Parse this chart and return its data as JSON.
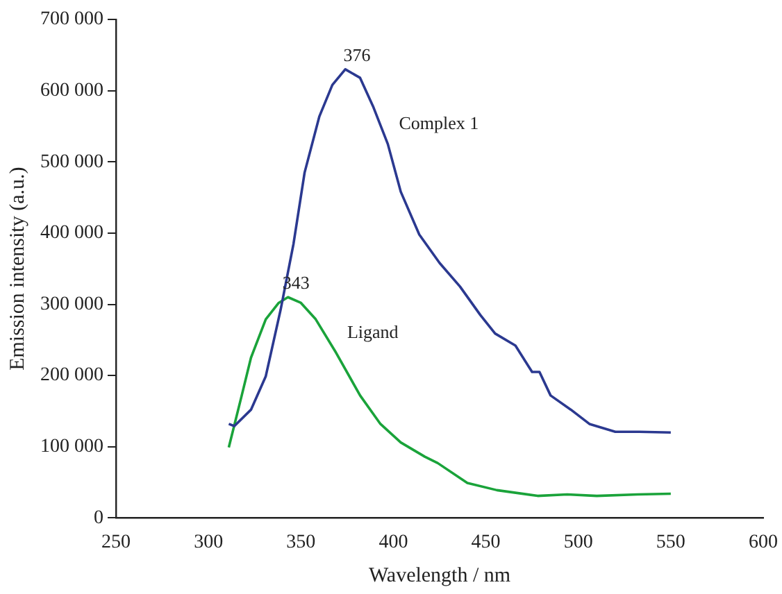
{
  "chart_data": {
    "type": "line",
    "xlabel": "Wavelength / nm",
    "ylabel": "Emission intensity (a.u.)",
    "xlim": [
      250,
      600
    ],
    "xticks": [
      250,
      300,
      350,
      400,
      450,
      500,
      550,
      600
    ],
    "ylim": [
      0,
      700000
    ],
    "yticks": [
      {
        "value": 0,
        "label": "0"
      },
      {
        "value": 100000,
        "label": "100 000"
      },
      {
        "value": 200000,
        "label": "200 000"
      },
      {
        "value": 300000,
        "label": "300 000"
      },
      {
        "value": 400000,
        "label": "400 000"
      },
      {
        "value": 500000,
        "label": "500 000"
      },
      {
        "value": 600000,
        "label": "600 000"
      },
      {
        "value": 700000,
        "label": "700 000"
      }
    ],
    "grid": false,
    "legend": false,
    "marker": "none",
    "line_style": "solid",
    "series": [
      {
        "name": "Complex 1",
        "color": "#2b3990",
        "x": [
          311,
          314,
          323,
          331,
          339,
          346,
          352,
          360,
          367,
          374,
          382,
          389,
          397,
          404,
          414,
          425,
          436,
          447,
          455,
          466,
          475,
          479,
          485,
          496,
          506,
          520,
          533,
          550
        ],
        "values": [
          132000,
          129000,
          152000,
          199000,
          292000,
          385000,
          485000,
          564000,
          608000,
          630000,
          618000,
          578000,
          525000,
          458000,
          398000,
          358000,
          325000,
          285000,
          259000,
          242000,
          205000,
          205000,
          172000,
          152000,
          132000,
          121000,
          121000,
          120000
        ]
      },
      {
        "name": "Ligand",
        "color": "#1aa33a",
        "x": [
          311,
          318,
          323,
          331,
          338,
          343,
          350,
          358,
          369,
          382,
          393,
          404,
          417,
          424,
          440,
          456,
          478,
          494,
          510,
          532,
          550
        ],
        "values": [
          99000,
          172000,
          225000,
          279000,
          302000,
          310000,
          302000,
          279000,
          232000,
          172000,
          132000,
          106000,
          86000,
          77000,
          49000,
          39000,
          31000,
          33000,
          31000,
          33000,
          34000
        ]
      }
    ],
    "annotations": [
      {
        "text": "376",
        "x": 376,
        "y": 630000
      },
      {
        "text": "343",
        "x": 343,
        "y": 310000
      }
    ]
  }
}
